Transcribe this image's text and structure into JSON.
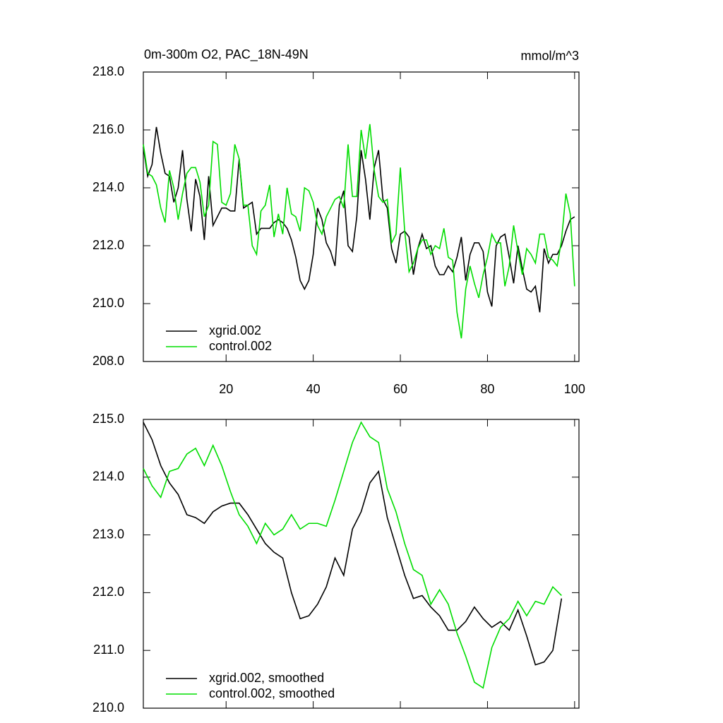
{
  "chart_data": [
    {
      "type": "line",
      "title": "0m-300m O2, PAC_18N-49N",
      "units": "mmol/m^3",
      "x": [
        1,
        2,
        3,
        4,
        5,
        6,
        7,
        8,
        9,
        10,
        11,
        12,
        13,
        14,
        15,
        16,
        17,
        18,
        19,
        20,
        21,
        22,
        23,
        24,
        25,
        26,
        27,
        28,
        29,
        30,
        31,
        32,
        33,
        34,
        35,
        36,
        37,
        38,
        39,
        40,
        41,
        42,
        43,
        44,
        45,
        46,
        47,
        48,
        49,
        50,
        51,
        52,
        53,
        54,
        55,
        56,
        57,
        58,
        59,
        60,
        61,
        62,
        63,
        64,
        65,
        66,
        67,
        68,
        69,
        70,
        71,
        72,
        73,
        74,
        75,
        76,
        77,
        78,
        79,
        80,
        81,
        82,
        83,
        84,
        85,
        86,
        87,
        88,
        89,
        90,
        91,
        92,
        93,
        94,
        95,
        96,
        97,
        98,
        99,
        100
      ],
      "series": [
        {
          "name": "xgrid.002",
          "color": "#000000",
          "values": [
            215.4,
            214.4,
            214.8,
            216.1,
            215.2,
            214.5,
            214.4,
            213.5,
            214.0,
            215.3,
            213.6,
            212.5,
            214.3,
            213.7,
            212.2,
            214.4,
            212.7,
            213.0,
            213.3,
            213.3,
            213.2,
            213.2,
            215.0,
            213.3,
            213.4,
            213.5,
            212.4,
            212.6,
            212.6,
            212.6,
            212.8,
            212.9,
            212.8,
            212.6,
            212.2,
            211.6,
            210.8,
            210.5,
            210.8,
            211.7,
            213.3,
            212.9,
            212.1,
            211.8,
            211.3,
            213.4,
            213.9,
            212.0,
            211.8,
            213.0,
            215.3,
            214.3,
            212.9,
            214.7,
            215.3,
            213.6,
            213.3,
            211.9,
            211.4,
            212.4,
            212.5,
            212.3,
            211.0,
            211.9,
            212.4,
            211.9,
            212.0,
            211.3,
            211.0,
            211.0,
            211.3,
            211.1,
            211.6,
            212.3,
            210.8,
            211.7,
            212.1,
            212.1,
            211.8,
            210.4,
            209.9,
            212.0,
            212.3,
            212.4,
            211.6,
            210.7,
            212.0,
            211.2,
            210.5,
            210.4,
            210.6,
            209.7,
            211.9,
            211.4,
            211.7,
            211.7,
            212.0,
            212.5,
            212.9,
            213.0
          ]
        },
        {
          "name": "control.002",
          "color": "#00dd00",
          "values": [
            215.5,
            214.5,
            214.4,
            214.1,
            213.3,
            212.8,
            214.6,
            214.0,
            212.9,
            213.8,
            214.5,
            214.7,
            214.7,
            214.2,
            213.0,
            213.4,
            215.6,
            215.5,
            213.5,
            213.4,
            213.8,
            215.5,
            215.0,
            213.4,
            213.4,
            212.0,
            211.7,
            213.2,
            213.4,
            214.1,
            212.3,
            213.1,
            212.4,
            214.0,
            213.1,
            213.0,
            212.5,
            214.0,
            213.9,
            213.5,
            212.7,
            212.4,
            213.0,
            213.3,
            213.6,
            213.7,
            213.3,
            215.5,
            213.7,
            213.7,
            216.0,
            215.0,
            216.2,
            214.6,
            213.7,
            213.5,
            213.6,
            212.1,
            212.4,
            214.7,
            212.5,
            211.1,
            211.4,
            211.9,
            212.2,
            212.2,
            211.7,
            212.0,
            211.9,
            212.6,
            211.6,
            211.5,
            209.7,
            208.8,
            210.5,
            211.3,
            210.7,
            210.2,
            211.0,
            211.6,
            212.4,
            212.1,
            212.1,
            210.6,
            211.3,
            212.7,
            211.8,
            211.0,
            211.9,
            211.7,
            211.4,
            212.4,
            212.4,
            211.6,
            211.5,
            211.3,
            212.2,
            213.8,
            213.1,
            210.6
          ]
        }
      ],
      "xlim": [
        1,
        101
      ],
      "xticks": [
        20,
        40,
        60,
        80,
        100
      ],
      "ylim": [
        208,
        218
      ],
      "yticks": [
        {
          "value": 208,
          "label": "208.0"
        },
        {
          "value": 210,
          "label": "210.0"
        },
        {
          "value": 212,
          "label": "212.0"
        },
        {
          "value": 214,
          "label": "214.0"
        },
        {
          "value": 216,
          "label": "216.0"
        },
        {
          "value": 218,
          "label": "218.0"
        }
      ],
      "legend": "lower left"
    },
    {
      "type": "line",
      "x": [
        1,
        3,
        5,
        7,
        9,
        11,
        13,
        15,
        17,
        19,
        21,
        23,
        25,
        27,
        29,
        31,
        33,
        35,
        37,
        39,
        41,
        43,
        45,
        47,
        49,
        51,
        53,
        55,
        57,
        59,
        61,
        63,
        65,
        67,
        69,
        71,
        73,
        75,
        77,
        79,
        81,
        83,
        85,
        87,
        89,
        91,
        93,
        95,
        97
      ],
      "series": [
        {
          "name": "xgrid.002, smoothed",
          "color": "#000000",
          "values": [
            214.95,
            214.65,
            214.2,
            213.9,
            213.7,
            213.35,
            213.3,
            213.2,
            213.4,
            213.5,
            213.55,
            213.55,
            213.35,
            213.1,
            212.85,
            212.7,
            212.6,
            212.0,
            211.55,
            211.6,
            211.8,
            212.1,
            212.6,
            212.3,
            213.1,
            213.4,
            213.9,
            214.1,
            213.3,
            212.8,
            212.3,
            211.9,
            211.95,
            211.75,
            211.6,
            211.35,
            211.35,
            211.5,
            211.75,
            211.55,
            211.4,
            211.5,
            211.35,
            211.7,
            211.25,
            210.75,
            210.8,
            211.0,
            211.9
          ]
        },
        {
          "name": "control.002, smoothed",
          "color": "#00dd00",
          "values": [
            214.15,
            213.85,
            213.65,
            214.1,
            214.15,
            214.4,
            214.5,
            214.2,
            214.55,
            214.2,
            213.75,
            213.35,
            213.15,
            212.85,
            213.2,
            213.0,
            213.1,
            213.35,
            213.1,
            213.2,
            213.2,
            213.15,
            213.6,
            214.1,
            214.6,
            214.95,
            214.7,
            214.6,
            213.8,
            213.4,
            212.85,
            212.4,
            212.3,
            211.8,
            212.05,
            211.8,
            211.3,
            210.9,
            210.45,
            210.35,
            211.05,
            211.4,
            211.55,
            211.85,
            211.6,
            211.85,
            211.8,
            212.1,
            211.95
          ]
        }
      ],
      "xlim": [
        1,
        101
      ],
      "xticks": [
        20,
        40,
        60,
        80,
        100
      ],
      "ylim": [
        210,
        215
      ],
      "yticks": [
        {
          "value": 210,
          "label": "210.0"
        },
        {
          "value": 211,
          "label": "211.0"
        },
        {
          "value": 212,
          "label": "212.0"
        },
        {
          "value": 213,
          "label": "213.0"
        },
        {
          "value": 214,
          "label": "214.0"
        },
        {
          "value": 215,
          "label": "215.0"
        }
      ],
      "legend": "lower left"
    }
  ]
}
